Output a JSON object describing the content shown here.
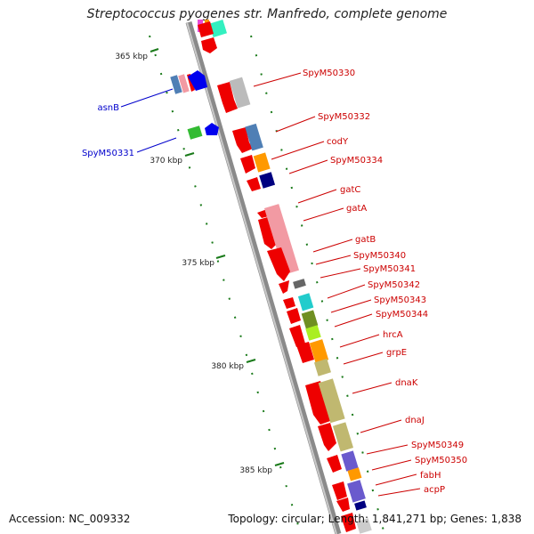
{
  "title": "Streptococcus pyogenes str. Manfredo, complete genome",
  "footer": {
    "accession": "Accession: NC_009332",
    "summary": "Topology: circular; Length: 1,841,271 bp; Genes: 1,838"
  },
  "colors": {
    "backbone": "#888888",
    "feature_red": "#ee0000",
    "label_red": "#cc0000",
    "label_blue": "#0000cc",
    "tick_green": "#1a7a1a"
  },
  "ticks": [
    {
      "label": "365 kbp"
    },
    {
      "label": "370 kbp"
    },
    {
      "label": "375 kbp"
    },
    {
      "label": "380 kbp"
    },
    {
      "label": "385 kbp"
    }
  ],
  "gene_labels_right": [
    "SpyM50330",
    "SpyM50332",
    "codY",
    "SpyM50334",
    "gatC",
    "gatA",
    "gatB",
    "SpyM50340",
    "SpyM50341",
    "SpyM50342",
    "SpyM50343",
    "SpyM50344",
    "hrcA",
    "grpE",
    "dnaK",
    "dnaJ",
    "SpyM50349",
    "SpyM50350",
    "fabH",
    "acpP"
  ],
  "gene_labels_left": [
    "asnB",
    "SpyM50331"
  ]
}
